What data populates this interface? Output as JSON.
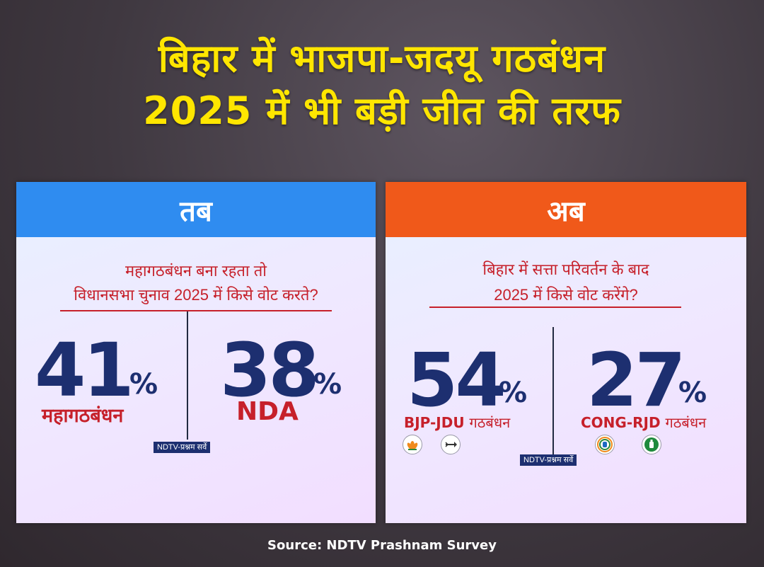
{
  "headline": {
    "line1": "बिहार में भाजपा-जदयू गठबंधन",
    "line2": "2025 में भी बड़ी जीत की तरफ"
  },
  "source": "Source: NDTV Prashnam Survey",
  "colors": {
    "headline": "#ffe600",
    "then_header": "#2f8cf0",
    "now_header": "#f0591a",
    "number": "#1d2f70",
    "accent_red": "#c6202a"
  },
  "chart_data": [
    {
      "type": "table",
      "title": "तब",
      "question": [
        "महागठबंधन बना रहता तो",
        "विधानसभा चुनाव 2025 में किसे वोट करते?"
      ],
      "categories": [
        "महागठबंधन",
        "NDA"
      ],
      "values": [
        41,
        38
      ],
      "unit": "%",
      "survey_tag": "NDTV-प्रश्नम सर्वे"
    },
    {
      "type": "table",
      "title": "अब",
      "question": [
        "बिहार में सत्ता परिवर्तन के बाद",
        "2025 में किसे वोट करेंगे?"
      ],
      "categories": [
        "BJP-JDU गठबंधन",
        "CONG-RJD गठबंधन"
      ],
      "category_parts": [
        {
          "party": "BJP-JDU",
          "suffix": "गठबंधन"
        },
        {
          "party": "CONG-RJD",
          "suffix": "गठबंधन"
        }
      ],
      "values": [
        54,
        27
      ],
      "unit": "%",
      "survey_tag": "NDTV-प्रश्नम सर्वे",
      "logos": [
        "bjp-lotus-icon",
        "jdu-arrow-icon",
        "congress-hand-icon",
        "rjd-lantern-icon"
      ]
    }
  ]
}
